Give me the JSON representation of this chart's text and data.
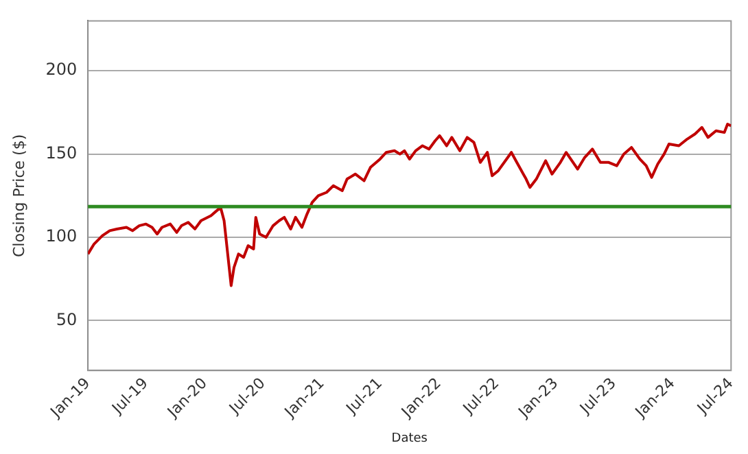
{
  "chart_data": {
    "type": "line",
    "xlabel": "Dates",
    "ylabel": "Closing Price ($)",
    "x": [
      "2019-01-01",
      "2019-01-20",
      "2019-02-15",
      "2019-03-10",
      "2019-04-01",
      "2019-05-01",
      "2019-05-20",
      "2019-06-10",
      "2019-07-01",
      "2019-07-20",
      "2019-08-05",
      "2019-08-20",
      "2019-09-15",
      "2019-10-05",
      "2019-10-20",
      "2019-11-10",
      "2019-12-01",
      "2019-12-20",
      "2020-01-20",
      "2020-02-19",
      "2020-03-01",
      "2020-03-23",
      "2020-04-01",
      "2020-04-15",
      "2020-05-01",
      "2020-05-15",
      "2020-06-01",
      "2020-06-08",
      "2020-06-20",
      "2020-07-10",
      "2020-08-01",
      "2020-08-20",
      "2020-09-05",
      "2020-09-25",
      "2020-10-10",
      "2020-10-30",
      "2020-11-15",
      "2020-12-01",
      "2020-12-20",
      "2021-01-15",
      "2021-02-05",
      "2021-03-05",
      "2021-03-20",
      "2021-04-15",
      "2021-05-12",
      "2021-06-01",
      "2021-07-01",
      "2021-07-20",
      "2021-08-15",
      "2021-09-01",
      "2021-09-15",
      "2021-10-01",
      "2021-10-20",
      "2021-11-10",
      "2021-12-01",
      "2021-12-20",
      "2022-01-03",
      "2022-01-25",
      "2022-02-10",
      "2022-03-07",
      "2022-03-30",
      "2022-04-20",
      "2022-05-10",
      "2022-06-01",
      "2022-06-16",
      "2022-07-05",
      "2022-08-15",
      "2022-09-01",
      "2022-09-30",
      "2022-10-12",
      "2022-11-01",
      "2022-11-30",
      "2022-12-20",
      "2023-01-15",
      "2023-02-02",
      "2023-03-10",
      "2023-04-01",
      "2023-04-25",
      "2023-05-20",
      "2023-06-15",
      "2023-07-10",
      "2023-08-01",
      "2023-08-25",
      "2023-09-20",
      "2023-10-10",
      "2023-10-27",
      "2023-11-15",
      "2023-12-05",
      "2023-12-20",
      "2024-01-20",
      "2024-02-15",
      "2024-03-10",
      "2024-04-01",
      "2024-04-20",
      "2024-05-15",
      "2024-06-10",
      "2024-06-20",
      "2024-07-01"
    ],
    "series": [
      {
        "color": "#c00000",
        "values": [
          90,
          96,
          101,
          104,
          105,
          106,
          104,
          107,
          108,
          106,
          102,
          106,
          108,
          103,
          107,
          109,
          105,
          110,
          113,
          118,
          110,
          71,
          82,
          90,
          88,
          95,
          93,
          112,
          102,
          100,
          107,
          110,
          112,
          105,
          112,
          106,
          114,
          121,
          125,
          127,
          131,
          128,
          135,
          138,
          134,
          142,
          147,
          151,
          152,
          150,
          152,
          147,
          152,
          155,
          153,
          158,
          161,
          155,
          160,
          152,
          160,
          157,
          145,
          151,
          137,
          140,
          151,
          145,
          135,
          130,
          135,
          146,
          138,
          145,
          151,
          141,
          148,
          153,
          145,
          145,
          143,
          150,
          154,
          147,
          143,
          136,
          144,
          150,
          156,
          155,
          159,
          162,
          166,
          160,
          164,
          163,
          168,
          167
        ]
      }
    ],
    "xlim": [
      "2019-01",
      "2024-07"
    ],
    "xticks": [
      {
        "value": "2019-01",
        "label": "Jan-19"
      },
      {
        "value": "2019-07",
        "label": "Jul-19"
      },
      {
        "value": "2020-01",
        "label": "Jan-20"
      },
      {
        "value": "2020-07",
        "label": "Jul-20"
      },
      {
        "value": "2021-01",
        "label": "Jan-21"
      },
      {
        "value": "2021-07",
        "label": "Jul-21"
      },
      {
        "value": "2022-01",
        "label": "Jan-22"
      },
      {
        "value": "2022-07",
        "label": "Jul-22"
      },
      {
        "value": "2023-01",
        "label": "Jan-23"
      },
      {
        "value": "2023-07",
        "label": "Jul-23"
      },
      {
        "value": "2024-01",
        "label": "Jan-24"
      },
      {
        "value": "2024-07",
        "label": "Jul-24"
      }
    ],
    "ylim": [
      20,
      230
    ],
    "yticks": [
      50,
      100,
      150,
      200
    ],
    "ref_lines": [
      {
        "axis": "y",
        "value": 118.5,
        "color": "#2e8b22"
      }
    ],
    "grid": "y",
    "marker": "none",
    "line_style": "solid",
    "legend": false
  }
}
